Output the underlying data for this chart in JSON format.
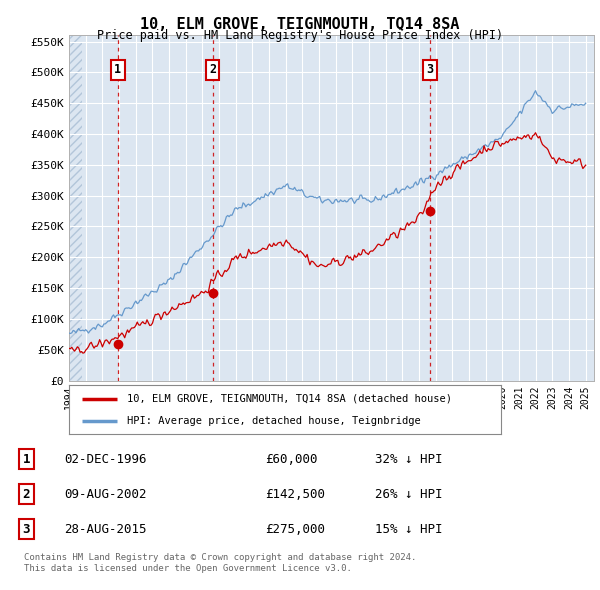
{
  "title": "10, ELM GROVE, TEIGNMOUTH, TQ14 8SA",
  "subtitle": "Price paid vs. HM Land Registry's House Price Index (HPI)",
  "ylim": [
    0,
    560000
  ],
  "yticks": [
    0,
    50000,
    100000,
    150000,
    200000,
    250000,
    300000,
    350000,
    400000,
    450000,
    500000,
    550000
  ],
  "ytick_labels": [
    "£0",
    "£50K",
    "£100K",
    "£150K",
    "£200K",
    "£250K",
    "£300K",
    "£350K",
    "£400K",
    "£450K",
    "£500K",
    "£550K"
  ],
  "xlim_start": 1994.0,
  "xlim_end": 2025.5,
  "background_color": "#ffffff",
  "plot_bg_color": "#dce6f1",
  "grid_color": "#ffffff",
  "hatch_color": "#c8d8e8",
  "sale_points": [
    {
      "year": 1996.92,
      "price": 60000,
      "label": "1",
      "date": "02-DEC-1996",
      "price_str": "£60,000",
      "hpi_pct": "32% ↓ HPI"
    },
    {
      "year": 2002.61,
      "price": 142500,
      "label": "2",
      "date": "09-AUG-2002",
      "price_str": "£142,500",
      "hpi_pct": "26% ↓ HPI"
    },
    {
      "year": 2015.66,
      "price": 275000,
      "label": "3",
      "date": "28-AUG-2015",
      "price_str": "£275,000",
      "hpi_pct": "15% ↓ HPI"
    }
  ],
  "legend_property_label": "10, ELM GROVE, TEIGNMOUTH, TQ14 8SA (detached house)",
  "legend_hpi_label": "HPI: Average price, detached house, Teignbridge",
  "footer": "Contains HM Land Registry data © Crown copyright and database right 2024.\nThis data is licensed under the Open Government Licence v3.0.",
  "property_line_color": "#cc0000",
  "hpi_line_color": "#6699cc",
  "sale_marker_color": "#cc0000",
  "vline_color": "#cc0000",
  "label_box_color": "#cc0000",
  "label_box_bg": "#ffffff"
}
